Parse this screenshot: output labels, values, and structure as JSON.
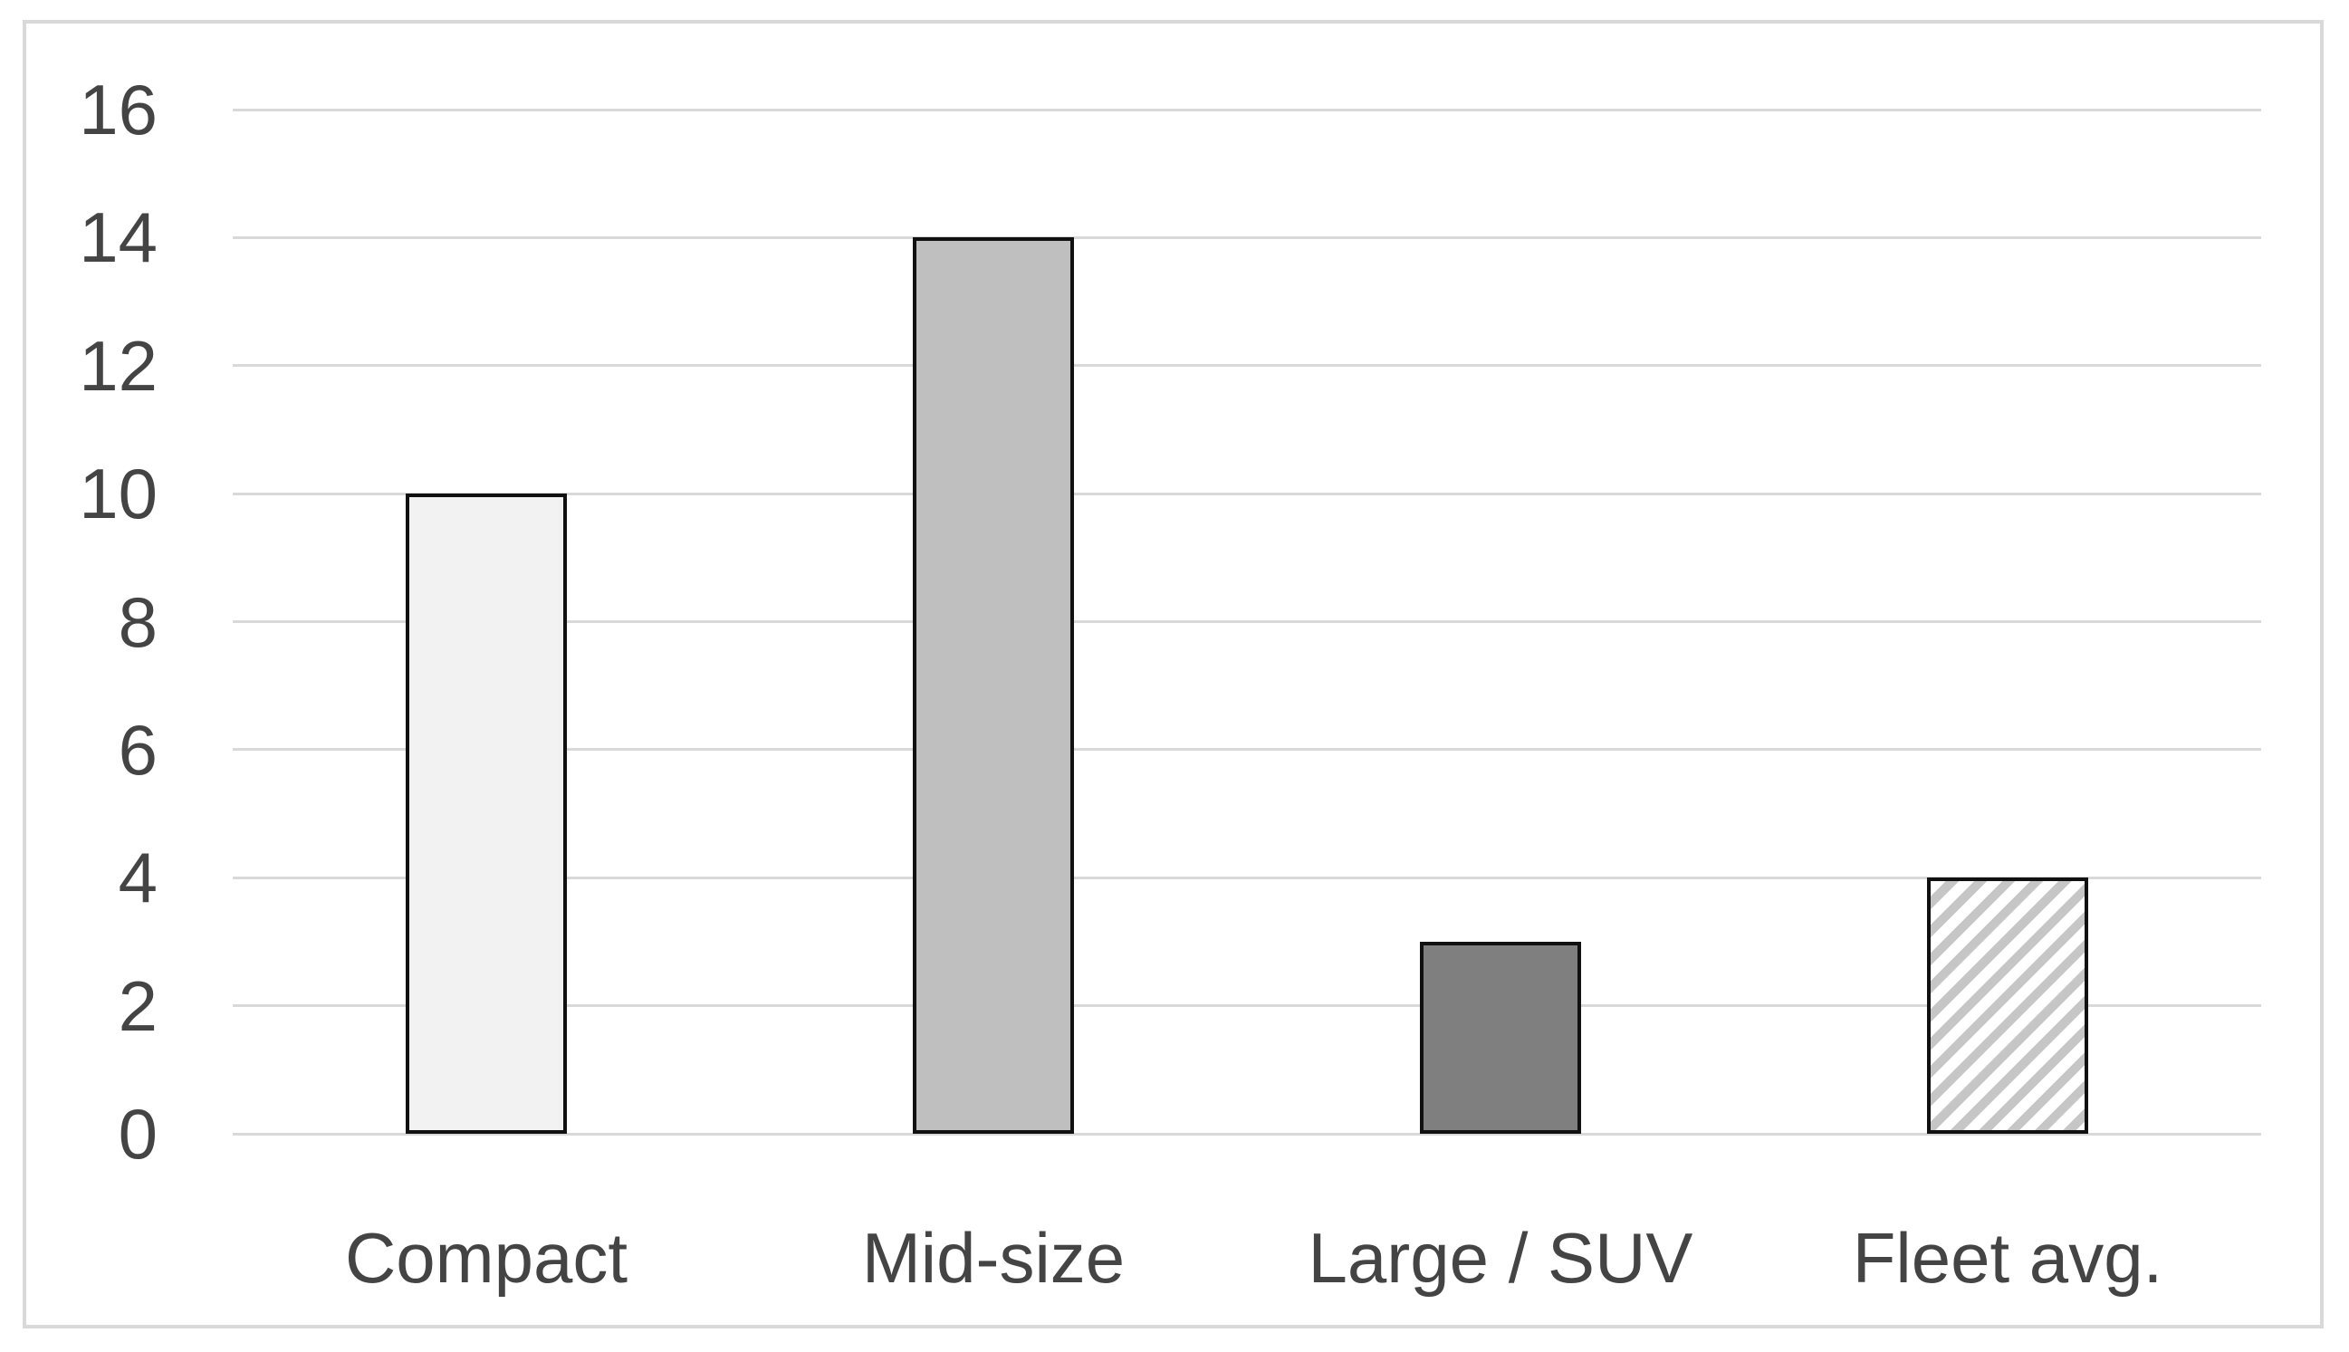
{
  "chart_data": {
    "type": "bar",
    "title": "",
    "xlabel": "",
    "ylabel": "",
    "categories": [
      "Compact",
      "Mid-size",
      "Large / SUV",
      "Fleet avg."
    ],
    "values": [
      10,
      14,
      3,
      4
    ],
    "ylim": [
      0,
      16
    ],
    "ytick_interval": 2,
    "ytick_labels": [
      "0",
      "2",
      "4",
      "6",
      "8",
      "10",
      "12",
      "14",
      "16"
    ],
    "grid": true,
    "legend": false,
    "bar_styles": [
      {
        "name": "light-gray-solid",
        "pattern": "solid",
        "fill": "#f2f2f2",
        "border": "#111111"
      },
      {
        "name": "medium-gray-solid",
        "pattern": "solid",
        "fill": "#bfbfbf",
        "border": "#111111"
      },
      {
        "name": "dark-gray-solid",
        "pattern": "solid",
        "fill": "#7f7f7f",
        "border": "#111111"
      },
      {
        "name": "diagonal-hatch",
        "pattern": "diagonal-hatch",
        "fill": "#ffffff",
        "hatch_color": "#c6c6c6",
        "border": "#111111"
      }
    ],
    "colors": {
      "gridline": "#d9d9d9",
      "frame_border": "#d9d9d9",
      "axis_text": "#444444",
      "background": "#ffffff"
    }
  }
}
